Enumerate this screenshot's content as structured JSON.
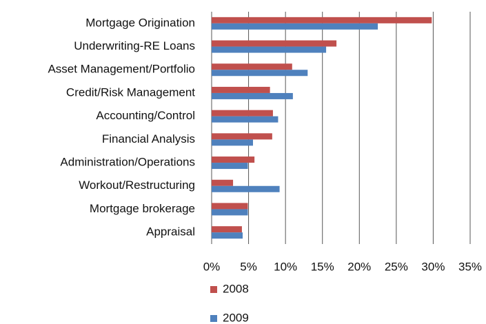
{
  "chart_data": {
    "type": "hbar",
    "categories": [
      "Mortgage Origination",
      "Underwriting-RE Loans",
      "Asset Management/Portfolio",
      "Credit/Risk Management",
      "Accounting/Control",
      "Financial Analysis",
      "Administration/Operations",
      "Workout/Restructuring",
      "Mortgage brokerage",
      "Appraisal"
    ],
    "series": [
      {
        "name": "2008",
        "color": "#c0504d",
        "values": [
          29.8,
          16.9,
          10.9,
          7.9,
          8.3,
          8.2,
          5.8,
          2.9,
          4.9,
          4.1
        ]
      },
      {
        "name": "2009",
        "color": "#4f81bd",
        "values": [
          22.5,
          15.5,
          13.0,
          11.0,
          9.0,
          5.6,
          4.9,
          9.2,
          4.9,
          4.2
        ]
      }
    ],
    "xlim": [
      0,
      35
    ],
    "xticks": [
      {
        "value": 0,
        "label": "0%"
      },
      {
        "value": 5,
        "label": "5%"
      },
      {
        "value": 10,
        "label": "10%"
      },
      {
        "value": 15,
        "label": "15%"
      },
      {
        "value": 20,
        "label": "20%"
      },
      {
        "value": 25,
        "label": "25%"
      },
      {
        "value": 30,
        "label": "30%"
      },
      {
        "value": 35,
        "label": "35%"
      }
    ],
    "grid": true,
    "legend": "bottom"
  }
}
